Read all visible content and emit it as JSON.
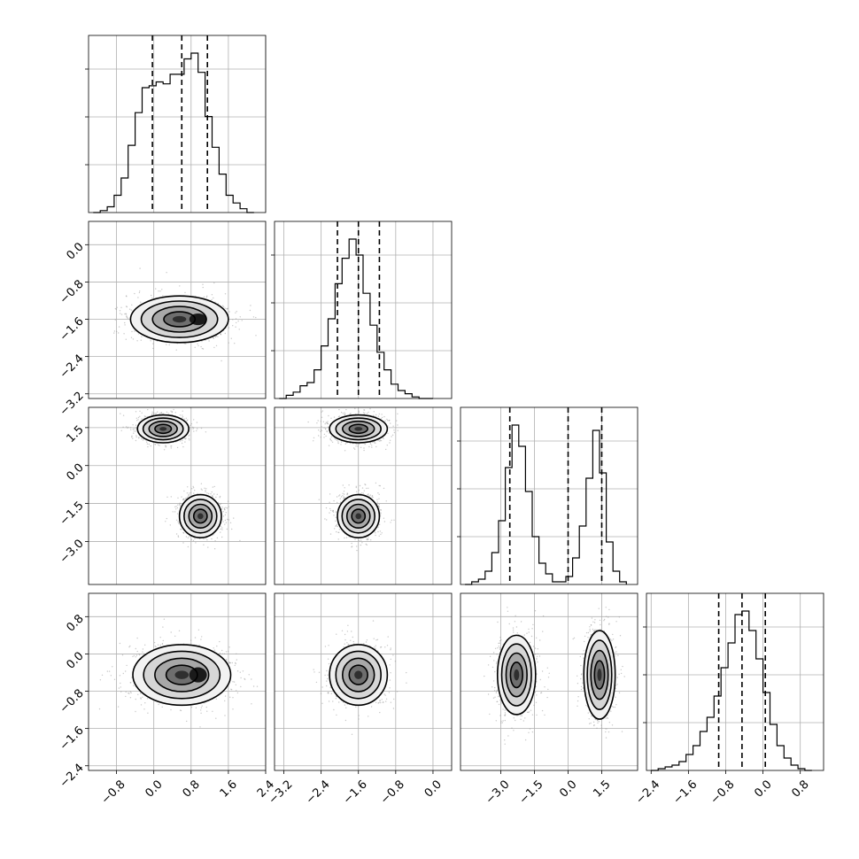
{
  "chart_data": {
    "type": "corner",
    "parameters": 4,
    "grid": true,
    "diagonal": [
      {
        "xlim": [
          -1.4,
          2.4
        ],
        "quantiles": [
          -0.03,
          0.6,
          1.15
        ],
        "bins": [
          -1.3,
          -1.15,
          -1.0,
          -0.85,
          -0.7,
          -0.55,
          -0.4,
          -0.25,
          -0.1,
          0.05,
          0.2,
          0.35,
          0.5,
          0.65,
          0.8,
          0.95,
          1.1,
          1.25,
          1.4,
          1.55,
          1.7,
          1.85,
          2.0,
          2.15
        ],
        "counts": [
          0,
          1,
          3,
          9,
          18,
          35,
          52,
          65,
          66,
          68,
          67,
          72,
          72,
          80,
          83,
          73,
          50,
          34,
          20,
          9,
          5,
          2,
          0
        ]
      },
      {
        "xlim": [
          -3.4,
          0.4
        ],
        "quantiles": [
          -2.05,
          -1.6,
          -1.15
        ],
        "bins": [
          -3.3,
          -3.15,
          -3.0,
          -2.85,
          -2.7,
          -2.55,
          -2.4,
          -2.25,
          -2.1,
          -1.95,
          -1.8,
          -1.65,
          -1.5,
          -1.35,
          -1.2,
          -1.05,
          -0.9,
          -0.75,
          -0.6,
          -0.45,
          -0.3,
          -0.15,
          0.0
        ],
        "counts": [
          0,
          2,
          4,
          8,
          10,
          18,
          33,
          50,
          72,
          88,
          100,
          90,
          66,
          46,
          29,
          18,
          9,
          5,
          3,
          1,
          0,
          0
        ]
      },
      {
        "xlim": [
          -4.8,
          3.1
        ],
        "quantiles": [
          -2.6,
          0.0,
          1.5
        ],
        "bins": [
          -4.6,
          -4.3,
          -4.0,
          -3.7,
          -3.4,
          -3.1,
          -2.8,
          -2.5,
          -2.2,
          -1.9,
          -1.6,
          -1.3,
          -1.0,
          -0.7,
          -0.4,
          -0.1,
          0.2,
          0.5,
          0.8,
          1.1,
          1.4,
          1.7,
          2.0,
          2.3,
          2.6
        ],
        "counts": [
          0,
          1,
          2,
          5,
          12,
          24,
          44,
          60,
          52,
          35,
          18,
          8,
          4,
          1,
          1,
          3,
          10,
          22,
          40,
          58,
          42,
          16,
          5,
          1
        ]
      },
      {
        "xlim": [
          -2.5,
          1.3
        ],
        "quantiles": [
          -0.95,
          -0.45,
          0.05
        ],
        "bins": [
          -2.4,
          -2.25,
          -2.1,
          -1.95,
          -1.8,
          -1.65,
          -1.5,
          -1.35,
          -1.2,
          -1.05,
          -0.9,
          -0.75,
          -0.6,
          -0.45,
          -0.3,
          -0.15,
          0.0,
          0.15,
          0.3,
          0.45,
          0.6,
          0.75,
          0.9,
          1.05
        ],
        "counts": [
          0,
          1,
          2,
          3,
          5,
          9,
          14,
          22,
          30,
          42,
          58,
          72,
          88,
          90,
          79,
          63,
          44,
          26,
          14,
          7,
          3,
          1,
          0
        ]
      }
    ],
    "pairs": [
      {
        "row": 1,
        "col": 0,
        "clusters": [
          {
            "cx": 0.55,
            "cy": -1.6,
            "sx": 1.05,
            "sy": 0.5,
            "inner": [
              0.95,
              -1.6
            ]
          }
        ]
      },
      {
        "row": 2,
        "col": 0,
        "clusters": [
          {
            "cx": 0.2,
            "cy": 1.45,
            "sx": 0.55,
            "sy": 0.55
          },
          {
            "cx": 1.0,
            "cy": -2.0,
            "sx": 0.45,
            "sy": 0.85
          }
        ]
      },
      {
        "row": 2,
        "col": 1,
        "clusters": [
          {
            "cx": -1.6,
            "cy": 1.45,
            "sx": 0.62,
            "sy": 0.55
          },
          {
            "cx": -1.6,
            "cy": -2.0,
            "sx": 0.45,
            "sy": 0.85
          }
        ]
      },
      {
        "row": 3,
        "col": 0,
        "clusters": [
          {
            "cx": 0.6,
            "cy": -0.45,
            "sx": 1.05,
            "sy": 0.65,
            "inner": [
              0.95,
              -0.45
            ]
          }
        ]
      },
      {
        "row": 3,
        "col": 1,
        "clusters": [
          {
            "cx": -1.6,
            "cy": -0.45,
            "sx": 0.62,
            "sy": 0.65
          }
        ]
      },
      {
        "row": 3,
        "col": 2,
        "clusters": [
          {
            "cx": -2.3,
            "cy": -0.45,
            "sx": 0.85,
            "sy": 0.85
          },
          {
            "cx": 1.4,
            "cy": -0.45,
            "sx": 0.7,
            "sy": 0.95
          }
        ]
      }
    ],
    "ylims": [
      null,
      [
        -3.3,
        0.5
      ],
      [
        -4.7,
        2.3
      ],
      [
        -2.5,
        1.3
      ]
    ],
    "xticks": [
      {
        "values": [
          -0.8,
          0.0,
          0.8,
          1.6,
          2.4
        ],
        "labels": [
          "−0.8",
          "0.0",
          "0.8",
          "1.6",
          "2.4"
        ]
      },
      {
        "values": [
          -3.2,
          -2.4,
          -1.6,
          -0.8,
          0.0
        ],
        "labels": [
          "−3.2",
          "−2.4",
          "−1.6",
          "−0.8",
          "0.0"
        ]
      },
      {
        "values": [
          -3.0,
          -1.5,
          0.0,
          1.5
        ],
        "labels": [
          "−3.0",
          "−1.5",
          "0.0",
          "1.5"
        ]
      },
      {
        "values": [
          -2.4,
          -1.6,
          -0.8,
          0.0,
          0.8
        ],
        "labels": [
          "−2.4",
          "−1.6",
          "−0.8",
          "0.0",
          "0.8"
        ]
      }
    ],
    "yticks": [
      null,
      {
        "values": [
          0.0,
          -0.8,
          -1.6,
          -2.4,
          -3.2
        ],
        "labels": [
          "0.0",
          "−0.8",
          "−1.6",
          "−2.4",
          "−3.2"
        ]
      },
      {
        "values": [
          1.5,
          0.0,
          -1.5,
          -3.0
        ],
        "labels": [
          "1.5",
          "0.0",
          "−1.5",
          "−3.0"
        ]
      },
      {
        "values": [
          0.8,
          0.0,
          -0.8,
          -1.6,
          -2.4
        ],
        "labels": [
          "0.8",
          "0.0",
          "−0.8",
          "−1.6",
          "−2.4"
        ]
      }
    ]
  }
}
